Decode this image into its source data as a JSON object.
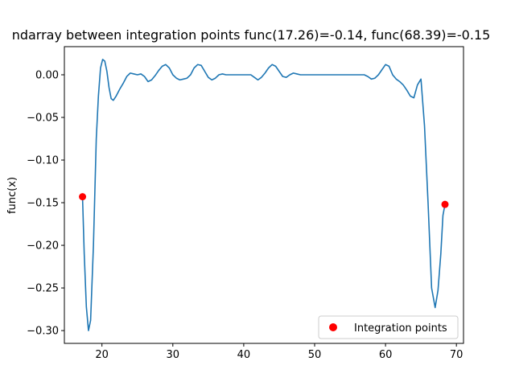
{
  "chart_data": {
    "type": "line",
    "title": "ndarray between integration points func(17.26)=-0.14, func(68.39)=-0.15",
    "xlabel": "",
    "ylabel": "func(x)",
    "xlim": [
      14.7,
      71.0
    ],
    "ylim": [
      -0.315,
      0.033
    ],
    "xticks": [
      20,
      30,
      40,
      50,
      60,
      70
    ],
    "xtick_labels": [
      "20",
      "30",
      "40",
      "50",
      "60",
      "70"
    ],
    "yticks": [
      0.0,
      -0.05,
      -0.1,
      -0.15,
      -0.2,
      -0.25,
      -0.3
    ],
    "ytick_labels": [
      "0.00",
      "−0.05",
      "−0.10",
      "−0.15",
      "−0.20",
      "−0.25",
      "−0.30"
    ],
    "grid": false,
    "legend_position": "lower-right",
    "series": [
      {
        "color": "#1f77b4",
        "x": [
          17.26,
          17.5,
          17.8,
          18.1,
          18.4,
          18.8,
          19.2,
          19.5,
          19.8,
          20.1,
          20.4,
          20.7,
          21.0,
          21.3,
          21.6,
          22.0,
          22.5,
          23.0,
          23.5,
          24.0,
          24.5,
          25.0,
          25.5,
          26.0,
          26.5,
          27.0,
          27.5,
          28.0,
          28.5,
          29.0,
          29.5,
          30.0,
          30.5,
          31.0,
          31.5,
          32.0,
          32.5,
          33.0,
          33.5,
          34.0,
          34.5,
          35.0,
          35.5,
          36.0,
          36.5,
          37.0,
          37.5,
          38.0,
          38.5,
          39.0,
          40.0,
          40.5,
          41.0,
          41.5,
          42.0,
          42.5,
          43.0,
          43.5,
          44.0,
          44.5,
          45.0,
          45.5,
          46.0,
          46.5,
          47.0,
          47.5,
          48.0,
          50.0,
          52.0,
          54.0,
          55.0,
          56.0,
          57.0,
          57.5,
          58.0,
          58.5,
          59.0,
          59.5,
          60.0,
          60.5,
          61.0,
          61.5,
          62.0,
          62.5,
          63.0,
          63.5,
          64.0,
          64.5,
          65.0,
          65.5,
          66.0,
          66.5,
          67.0,
          67.4,
          67.8,
          68.1,
          68.39
        ],
        "y": [
          -0.143,
          -0.21,
          -0.272,
          -0.3,
          -0.288,
          -0.2,
          -0.075,
          -0.025,
          0.008,
          0.018,
          0.016,
          0.004,
          -0.015,
          -0.028,
          -0.03,
          -0.025,
          -0.017,
          -0.01,
          -0.002,
          0.002,
          0.001,
          0.0,
          0.001,
          -0.002,
          -0.008,
          -0.006,
          -0.001,
          0.005,
          0.01,
          0.012,
          0.008,
          0.0,
          -0.004,
          -0.006,
          -0.005,
          -0.004,
          0.0,
          0.008,
          0.012,
          0.011,
          0.004,
          -0.003,
          -0.006,
          -0.004,
          0.0,
          0.001,
          0.0,
          0.0,
          0.0,
          0.0,
          0.0,
          0.0,
          0.0,
          -0.003,
          -0.006,
          -0.003,
          0.002,
          0.008,
          0.012,
          0.01,
          0.004,
          -0.002,
          -0.003,
          0.0,
          0.002,
          0.001,
          0.0,
          0.0,
          0.0,
          0.0,
          0.0,
          0.0,
          0.0,
          -0.002,
          -0.005,
          -0.004,
          0.0,
          0.006,
          0.012,
          0.01,
          0.0,
          -0.005,
          -0.008,
          -0.012,
          -0.018,
          -0.025,
          -0.027,
          -0.012,
          -0.005,
          -0.06,
          -0.15,
          -0.25,
          -0.273,
          -0.253,
          -0.21,
          -0.165,
          -0.152
        ]
      }
    ],
    "scatter": {
      "name": "Integration points",
      "color": "#ff0000",
      "x": [
        17.26,
        68.39
      ],
      "y": [
        -0.143,
        -0.152
      ]
    }
  }
}
